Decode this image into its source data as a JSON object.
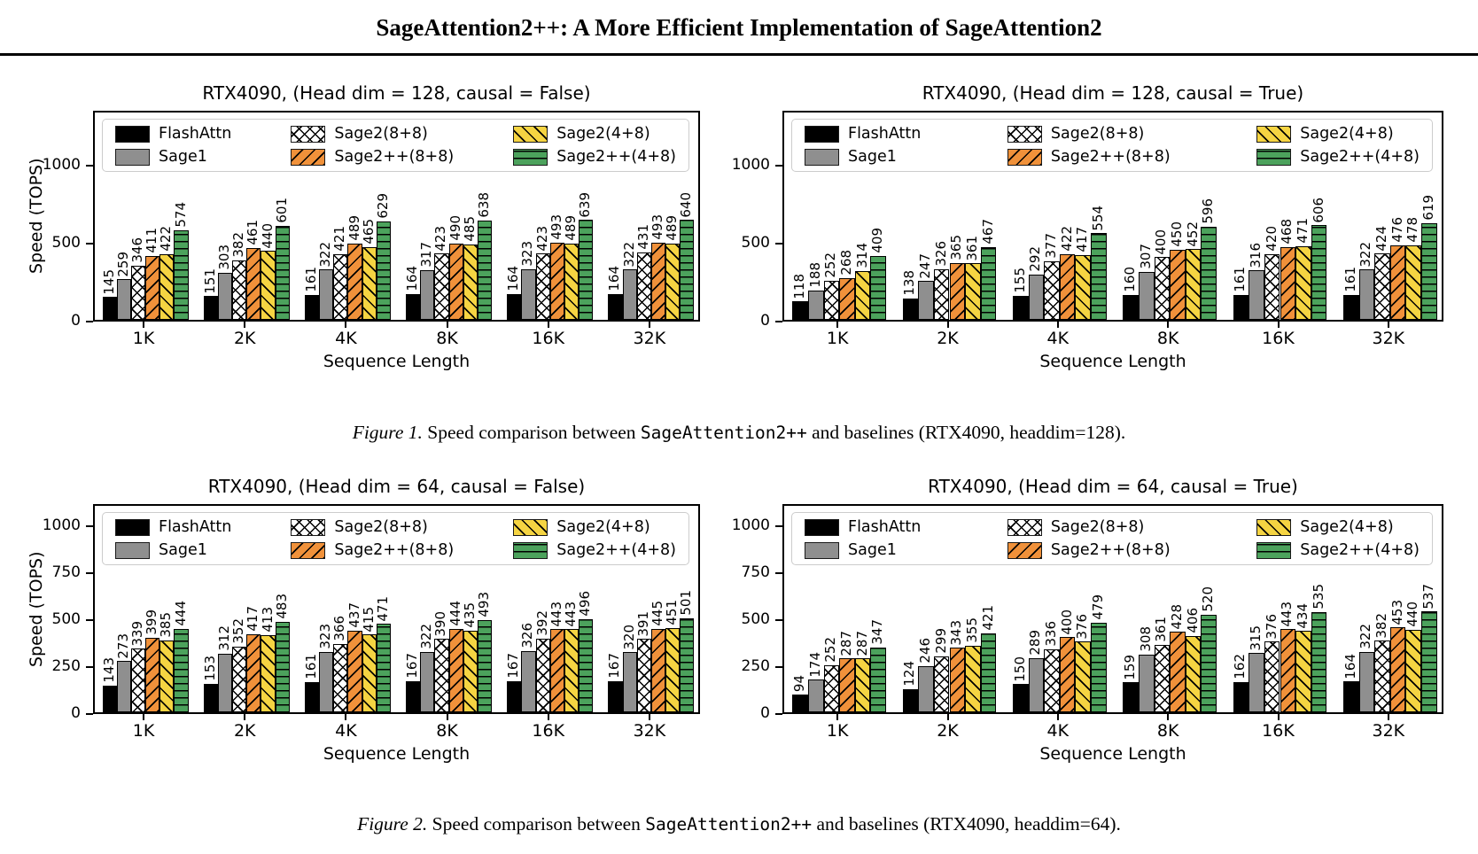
{
  "header": {
    "title": "SageAttention2++: A More Efficient Implementation of SageAttention2"
  },
  "legend": {
    "items": [
      {
        "label": "FlashAttn",
        "color": "#000000",
        "hatch": "none"
      },
      {
        "label": "Sage1",
        "color": "#8f8f8f",
        "hatch": "none"
      },
      {
        "label": "Sage2(8+8)",
        "color": "#ffffff",
        "hatch": "x"
      },
      {
        "label": "Sage2++(8+8)",
        "color": "#f0913a",
        "hatch": "/"
      },
      {
        "label": "Sage2(4+8)",
        "color": "#f5d442",
        "hatch": "\\"
      },
      {
        "label": "Sage2++(4+8)",
        "color": "#4ca25c",
        "hatch": "-"
      }
    ]
  },
  "captions": {
    "figure1": {
      "label": "Figure 1.",
      "before_code": " Speed comparison between ",
      "code": "SageAttention2++",
      "after_code": " and baselines (RTX4090, headdim=128)."
    },
    "figure2": {
      "label": "Figure 2.",
      "before_code": " Speed comparison between ",
      "code": "SageAttention2++",
      "after_code": " and baselines (RTX4090, headdim=64)."
    }
  },
  "chart_data": [
    {
      "type": "bar",
      "title": "RTX4090, (Head dim = 128, causal = False)",
      "xlabel": "Sequence Length",
      "ylabel": "Speed (TOPS)",
      "categories": [
        "1K",
        "2K",
        "4K",
        "8K",
        "16K",
        "32K"
      ],
      "yticks": [
        0,
        500,
        1000
      ],
      "ylim": [
        0,
        1350
      ],
      "legend_position": "upper-left-inside",
      "grid": false,
      "series": [
        {
          "name": "FlashAttn",
          "values": [
            145,
            151,
            161,
            164,
            164,
            164
          ]
        },
        {
          "name": "Sage1",
          "values": [
            259,
            303,
            322,
            317,
            323,
            322
          ]
        },
        {
          "name": "Sage2(8+8)",
          "values": [
            346,
            382,
            421,
            423,
            423,
            431
          ]
        },
        {
          "name": "Sage2++(8+8)",
          "values": [
            411,
            461,
            489,
            490,
            493,
            493
          ]
        },
        {
          "name": "Sage2(4+8)",
          "values": [
            422,
            440,
            465,
            485,
            489,
            489
          ]
        },
        {
          "name": "Sage2++(4+8)",
          "values": [
            574,
            601,
            629,
            638,
            639,
            640
          ]
        }
      ]
    },
    {
      "type": "bar",
      "title": "RTX4090, (Head dim = 128, causal = True)",
      "xlabel": "Sequence Length",
      "ylabel": "",
      "categories": [
        "1K",
        "2K",
        "4K",
        "8K",
        "16K",
        "32K"
      ],
      "yticks": [
        0,
        500,
        1000
      ],
      "ylim": [
        0,
        1350
      ],
      "legend_position": "upper-left-inside",
      "grid": false,
      "series": [
        {
          "name": "FlashAttn",
          "values": [
            118,
            138,
            155,
            160,
            161,
            161
          ]
        },
        {
          "name": "Sage1",
          "values": [
            188,
            247,
            292,
            307,
            316,
            322
          ]
        },
        {
          "name": "Sage2(8+8)",
          "values": [
            252,
            326,
            377,
            400,
            420,
            424
          ]
        },
        {
          "name": "Sage2++(8+8)",
          "values": [
            268,
            365,
            422,
            450,
            468,
            476
          ]
        },
        {
          "name": "Sage2(4+8)",
          "values": [
            314,
            361,
            417,
            452,
            471,
            478
          ]
        },
        {
          "name": "Sage2++(4+8)",
          "values": [
            409,
            467,
            554,
            596,
            606,
            619
          ]
        }
      ]
    },
    {
      "type": "bar",
      "title": "RTX4090, (Head dim = 64, causal = False)",
      "xlabel": "Sequence Length",
      "ylabel": "Speed (TOPS)",
      "categories": [
        "1K",
        "2K",
        "4K",
        "8K",
        "16K",
        "32K"
      ],
      "yticks": [
        0,
        250,
        500,
        750,
        1000
      ],
      "ylim": [
        0,
        1120
      ],
      "legend_position": "upper-left-inside",
      "grid": false,
      "series": [
        {
          "name": "FlashAttn",
          "values": [
            143,
            153,
            161,
            167,
            167,
            167
          ]
        },
        {
          "name": "Sage1",
          "values": [
            273,
            312,
            323,
            322,
            326,
            320
          ]
        },
        {
          "name": "Sage2(8+8)",
          "values": [
            339,
            352,
            366,
            390,
            392,
            391
          ]
        },
        {
          "name": "Sage2++(8+8)",
          "values": [
            399,
            417,
            437,
            444,
            443,
            445
          ]
        },
        {
          "name": "Sage2(4+8)",
          "values": [
            385,
            413,
            415,
            435,
            443,
            451
          ]
        },
        {
          "name": "Sage2++(4+8)",
          "values": [
            444,
            483,
            471,
            493,
            496,
            501
          ]
        }
      ]
    },
    {
      "type": "bar",
      "title": "RTX4090, (Head dim = 64, causal = True)",
      "xlabel": "Sequence Length",
      "ylabel": "",
      "categories": [
        "1K",
        "2K",
        "4K",
        "8K",
        "16K",
        "32K"
      ],
      "yticks": [
        0,
        250,
        500,
        750,
        1000
      ],
      "ylim": [
        0,
        1120
      ],
      "legend_position": "upper-left-inside",
      "grid": false,
      "series": [
        {
          "name": "FlashAttn",
          "values": [
            94,
            124,
            150,
            159,
            162,
            164
          ]
        },
        {
          "name": "Sage1",
          "values": [
            174,
            246,
            289,
            308,
            315,
            322
          ]
        },
        {
          "name": "Sage2(8+8)",
          "values": [
            252,
            299,
            336,
            361,
            376,
            382
          ]
        },
        {
          "name": "Sage2++(8+8)",
          "values": [
            287,
            343,
            400,
            428,
            443,
            453
          ]
        },
        {
          "name": "Sage2(4+8)",
          "values": [
            287,
            355,
            376,
            406,
            434,
            440
          ]
        },
        {
          "name": "Sage2++(4+8)",
          "values": [
            347,
            421,
            479,
            520,
            535,
            537
          ]
        }
      ]
    }
  ]
}
